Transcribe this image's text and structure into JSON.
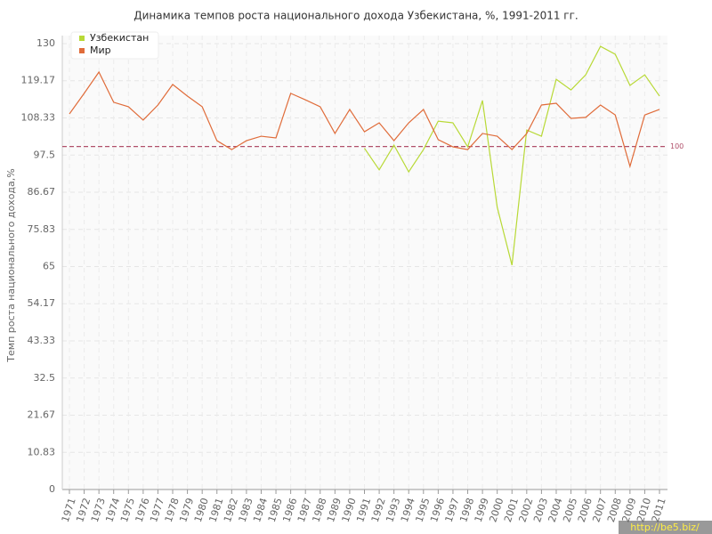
{
  "chart_data": {
    "type": "line",
    "title": "Динамика темпов роста национального дохода Узбекистана, %, 1991-2011 гг.",
    "y_label": "Темп роста национального дохода,%",
    "watermark": "http://be5.biz/",
    "categories": [
      "1971",
      "1972",
      "1973",
      "1974",
      "1975",
      "1976",
      "1977",
      "1978",
      "1979",
      "1980",
      "1981",
      "1982",
      "1983",
      "1984",
      "1985",
      "1986",
      "1987",
      "1988",
      "1989",
      "1990",
      "1991",
      "1992",
      "1993",
      "1994",
      "1995",
      "1996",
      "1997",
      "1998",
      "1999",
      "2000",
      "2001",
      "2002",
      "2003",
      "2004",
      "2005",
      "2006",
      "2007",
      "2008",
      "2009",
      "2010",
      "2011"
    ],
    "series": [
      {
        "name": "Узбекистан",
        "color": "#b8d936",
        "values": [
          null,
          null,
          null,
          null,
          null,
          null,
          null,
          null,
          null,
          null,
          null,
          null,
          null,
          null,
          null,
          null,
          null,
          null,
          null,
          null,
          99.5,
          93.2,
          100.4,
          92.6,
          99.1,
          107.4,
          106.9,
          99.9,
          113.4,
          82.3,
          65.4,
          104.8,
          103,
          119.6,
          116.5,
          120.9,
          129.2,
          126.9,
          117.8,
          120.9,
          114.7
        ]
      },
      {
        "name": "Мир",
        "color": "#e06c3a",
        "values": [
          109.5,
          115.5,
          121.7,
          112.9,
          111.6,
          107.7,
          112.1,
          118.1,
          114.7,
          111.6,
          101.7,
          99.1,
          101.7,
          103,
          102.5,
          115.5,
          113.6,
          111.6,
          103.8,
          110.8,
          104.3,
          106.9,
          101.7,
          106.9,
          110.8,
          102,
          99.9,
          99.1,
          103.8,
          103,
          99.1,
          103.8,
          112.1,
          112.6,
          108.2,
          108.5,
          112.1,
          109.2,
          94.2,
          109.2,
          110.8
        ]
      }
    ],
    "reference_line": {
      "value": 100,
      "label": "100",
      "color": "#b0506a"
    },
    "ylim": [
      0,
      130
    ],
    "yticks": [
      0,
      10.83,
      21.67,
      32.5,
      43.33,
      54.17,
      65,
      75.83,
      86.67,
      97.5,
      108.33,
      119.17,
      130
    ],
    "grid": true,
    "legend": "top-left"
  }
}
